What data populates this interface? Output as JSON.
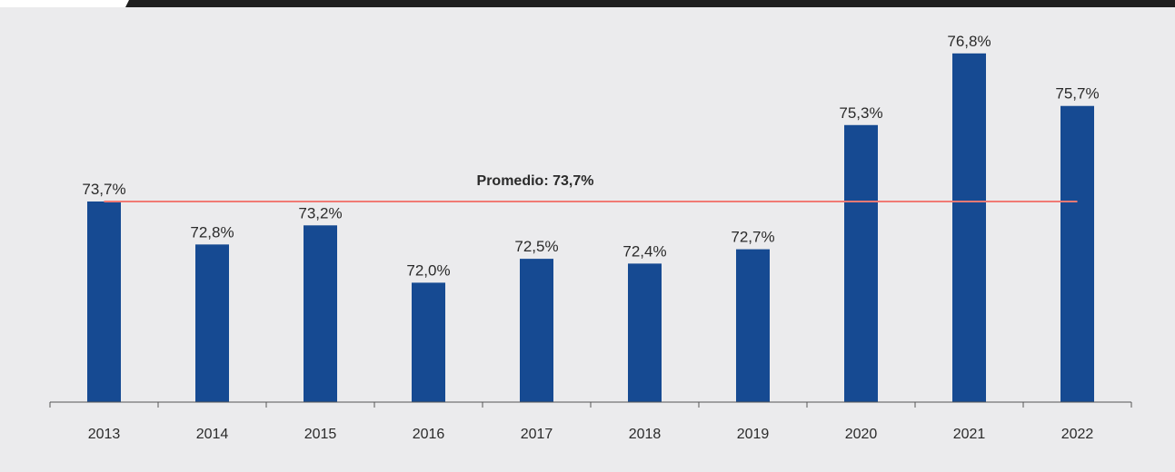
{
  "colors": {
    "bar": "#164a92",
    "average_line": "#f07a74",
    "axis": "#555555",
    "background": "#ebebed",
    "top_bar": "#1f1f1f"
  },
  "chart_data": {
    "type": "bar",
    "categories": [
      "2013",
      "2014",
      "2015",
      "2016",
      "2017",
      "2018",
      "2019",
      "2020",
      "2021",
      "2022"
    ],
    "values": [
      73.7,
      72.8,
      73.2,
      72.0,
      72.5,
      72.4,
      72.7,
      75.3,
      76.8,
      75.7
    ],
    "data_labels": [
      "73,7%",
      "72,8%",
      "73,2%",
      "72,0%",
      "72,5%",
      "72,4%",
      "72,7%",
      "75,3%",
      "76,8%",
      "75,7%"
    ],
    "average": {
      "value": 73.7,
      "label": "Promedio: 73,7%"
    },
    "ylim": [
      69.5,
      77.5
    ],
    "grid": false,
    "legend": "none"
  }
}
